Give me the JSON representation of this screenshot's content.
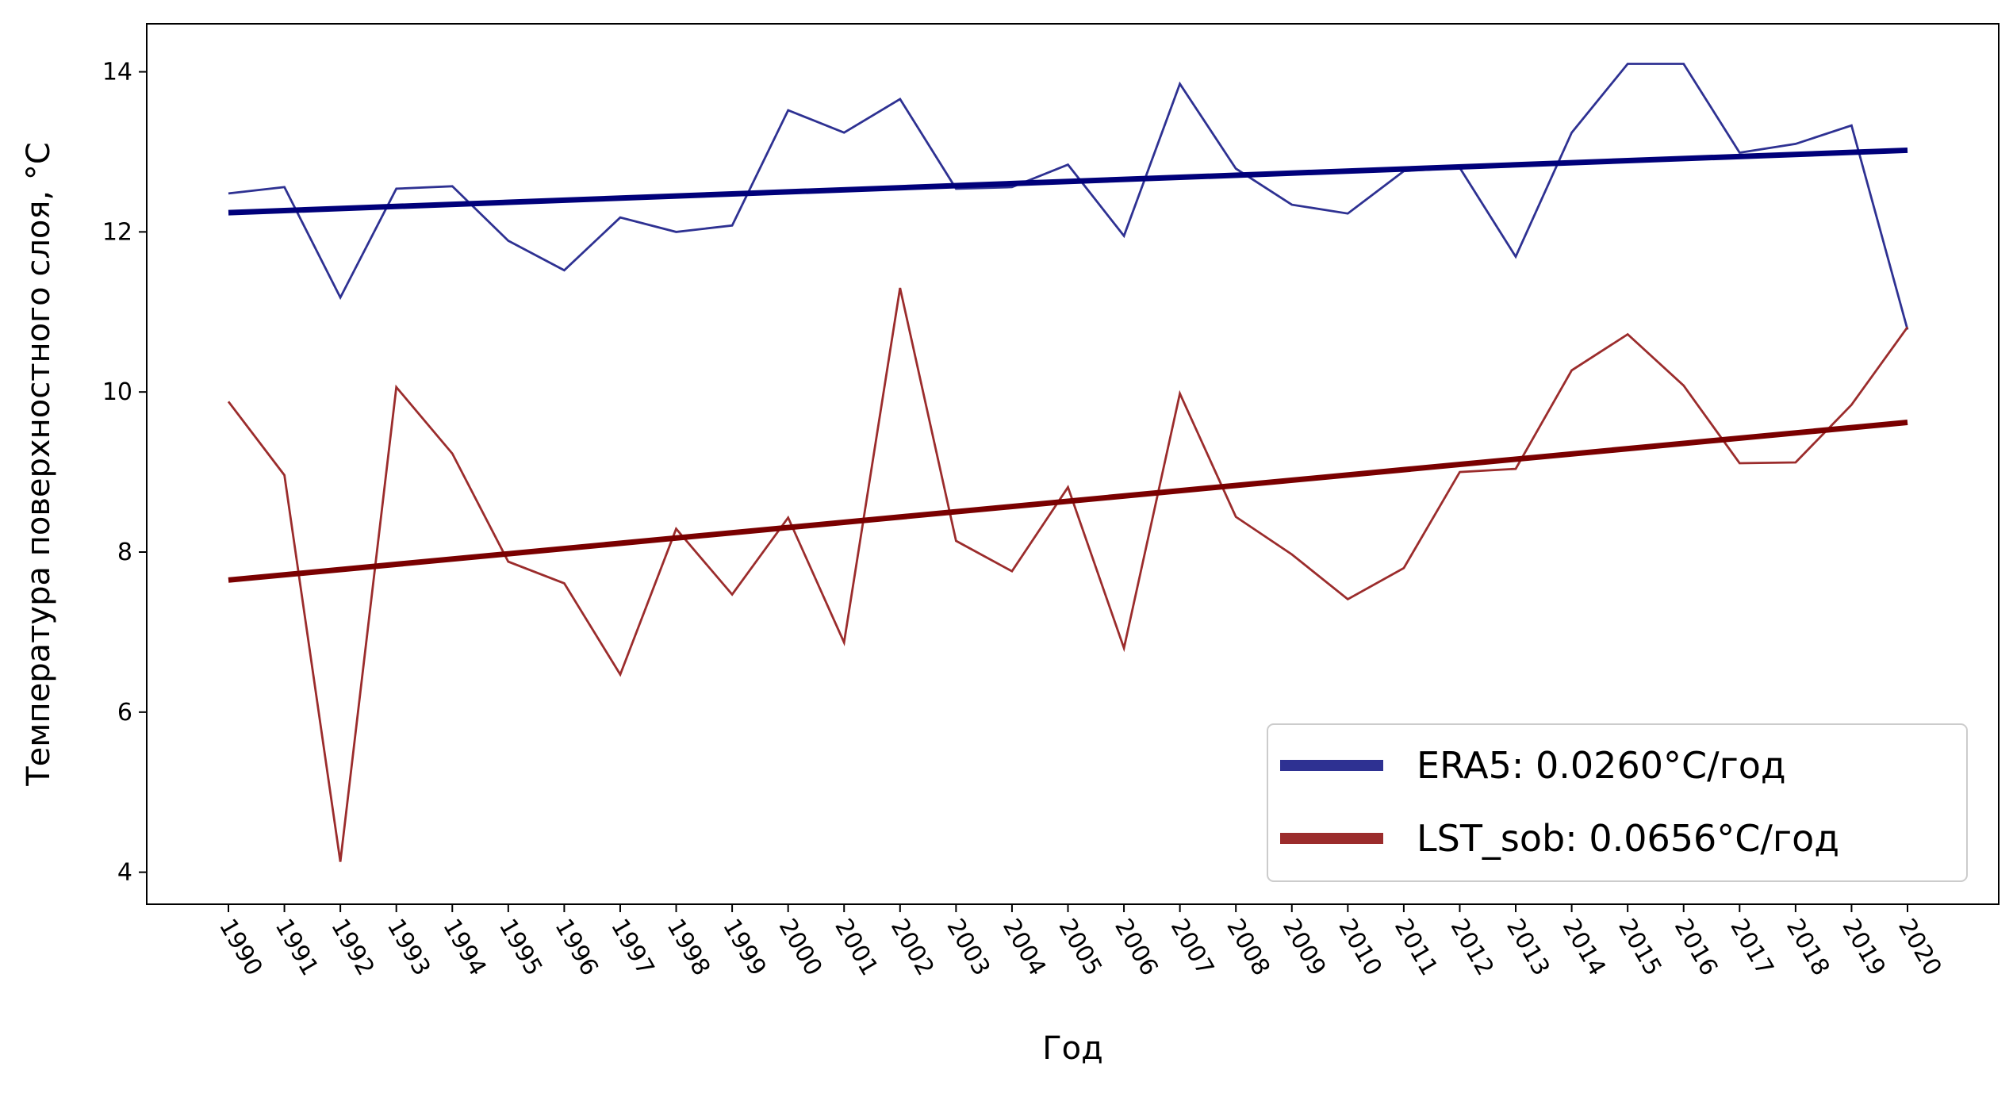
{
  "chart_data": {
    "type": "line",
    "title": "",
    "xlabel": "Год",
    "ylabel": "Температура поверхностного слоя, °C",
    "x": [
      "1990",
      "1991",
      "1992",
      "1993",
      "1994",
      "1995",
      "1996",
      "1997",
      "1998",
      "1999",
      "2000",
      "2001",
      "2002",
      "2003",
      "2004",
      "2005",
      "2006",
      "2007",
      "2008",
      "2009",
      "2010",
      "2011",
      "2012",
      "2013",
      "2014",
      "2015",
      "2016",
      "2017",
      "2018",
      "2019",
      "2020"
    ],
    "ylim": [
      3.6,
      14.6
    ],
    "yticks": [
      4,
      6,
      8,
      10,
      12,
      14
    ],
    "grid": false,
    "legend_position": "bottom-right",
    "series": [
      {
        "name": "ERA5",
        "color": "#2e3192",
        "values": [
          12.48,
          12.56,
          11.18,
          12.54,
          12.57,
          11.89,
          11.52,
          12.18,
          12.0,
          12.08,
          13.52,
          13.24,
          13.66,
          12.54,
          12.56,
          12.84,
          11.95,
          13.85,
          12.79,
          12.34,
          12.23,
          12.76,
          12.8,
          11.69,
          13.24,
          14.1,
          14.1,
          12.99,
          13.1,
          13.33,
          10.78
        ]
      },
      {
        "name": "LST_sob",
        "color": "#9b2c2c",
        "values": [
          9.88,
          8.96,
          4.13,
          10.06,
          9.23,
          7.88,
          7.61,
          6.47,
          8.29,
          7.47,
          8.43,
          6.87,
          11.3,
          8.14,
          7.76,
          8.81,
          6.8,
          9.98,
          8.44,
          7.97,
          7.41,
          7.8,
          9.0,
          9.04,
          10.27,
          10.72,
          10.08,
          9.11,
          9.12,
          9.84,
          10.81
        ]
      }
    ],
    "trends": [
      {
        "name": "ERA5 trend",
        "color": "#00007a",
        "start": 12.24,
        "end": 13.02
      },
      {
        "name": "LST_sob trend",
        "color": "#7a0000",
        "start": 7.65,
        "end": 9.62
      }
    ],
    "legend": [
      {
        "label": "ERA5: 0.0260°C/год",
        "color": "#2e3192"
      },
      {
        "label": "LST_sob: 0.0656°C/год",
        "color": "#9b2c2c"
      }
    ]
  }
}
